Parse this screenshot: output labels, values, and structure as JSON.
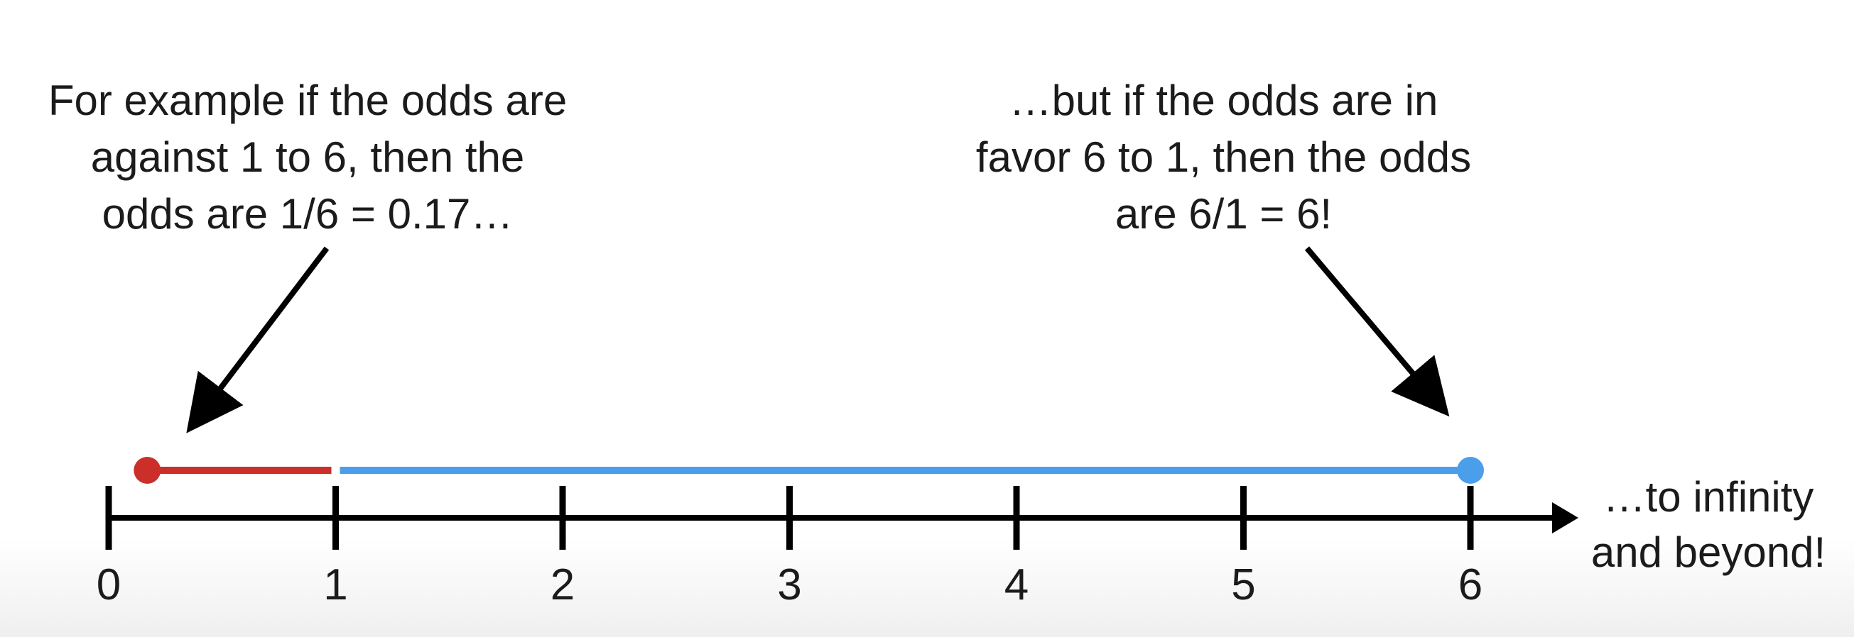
{
  "callouts": {
    "left": {
      "lines": [
        "For example if the odds are",
        "against 1 to 6, then the",
        "odds are 1/6 = 0.17…"
      ]
    },
    "right": {
      "lines": [
        "…but if the odds are in",
        "favor 6 to 1, then the odds",
        "are 6/1 = 6!"
      ]
    }
  },
  "axis": {
    "ticks": [
      "0",
      "1",
      "2",
      "3",
      "4",
      "5",
      "6"
    ],
    "tail_lines": [
      "…to infinity",
      "and beyond!"
    ]
  },
  "segments": {
    "against": {
      "from": 0.17,
      "to": 1,
      "color": "#cc2f2a"
    },
    "favor": {
      "from": 1,
      "to": 6,
      "color": "#4a9eea"
    }
  },
  "colors": {
    "axis": "#000000",
    "text": "#1b1b1b"
  }
}
